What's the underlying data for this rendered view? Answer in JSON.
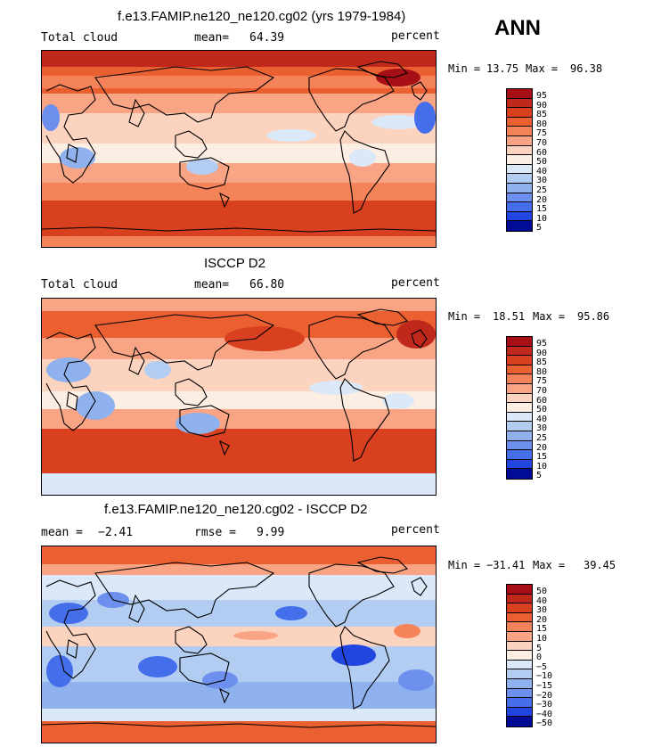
{
  "season": "ANN",
  "panels": [
    {
      "title": "f.e13.FAMIP.ne120_ne120.cg02 (yrs 1979-1984)",
      "left_label": "Total cloud",
      "mean_label": "mean=",
      "mean_value": "64.39",
      "units": "percent",
      "min_label": "Min =",
      "min_value": "13.75",
      "max_label": "Max =",
      "max_value": "96.38",
      "contour_levels": [
        "95",
        "90",
        "85",
        "80",
        "75",
        "70",
        "60",
        "50",
        "40",
        "30",
        "25",
        "20",
        "15",
        "10",
        "5"
      ]
    },
    {
      "title": "ISCCP D2",
      "left_label": "Total cloud",
      "mean_label": "mean=",
      "mean_value": "66.80",
      "units": "percent",
      "min_label": "Min =",
      "min_value": "18.51",
      "max_label": "Max =",
      "max_value": "95.86",
      "contour_levels": [
        "95",
        "90",
        "85",
        "80",
        "75",
        "70",
        "60",
        "50",
        "40",
        "30",
        "25",
        "20",
        "15",
        "10",
        "5"
      ]
    },
    {
      "title": "f.e13.FAMIP.ne120_ne120.cg02 - ISCCP D2",
      "left_label": "mean =",
      "left_value": "−2.41",
      "rmse_label": "rmse =",
      "rmse_value": "9.99",
      "units": "percent",
      "min_label": "Min =",
      "min_value": "−31.41",
      "max_label": "Max =",
      "max_value": "39.45",
      "contour_levels": [
        "50",
        "40",
        "30",
        "20",
        "15",
        "10",
        "5",
        "0",
        "−5",
        "−10",
        "−15",
        "−20",
        "−30",
        "−40",
        "−50"
      ]
    }
  ],
  "colors": {
    "colorbar": [
      "#a50f15",
      "#c0281b",
      "#d8401f",
      "#ea6031",
      "#f4835a",
      "#f9a585",
      "#fcd3bf",
      "#fdeee4",
      "#dbe8f7",
      "#b3cdf2",
      "#8fb1ee",
      "#6d90ee",
      "#456eea",
      "#2146e0",
      "#000c95"
    ],
    "ocean_red": "#d8401f",
    "ocean_blue": "#6d90ee"
  }
}
